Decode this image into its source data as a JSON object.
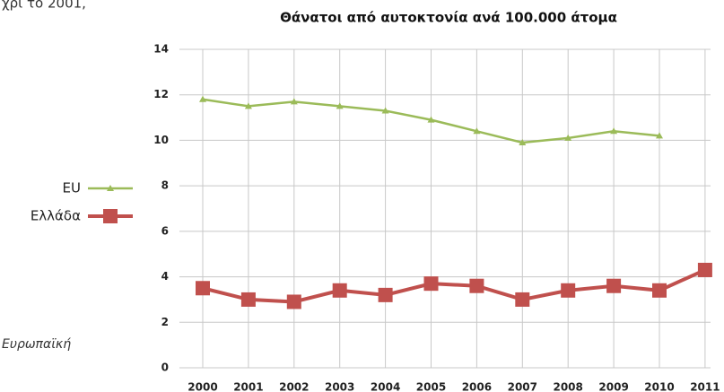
{
  "page_text": {
    "top_fragment": "χρι το 2001,",
    "side_fragment": "Ευρωπαϊκή"
  },
  "chart_data": {
    "type": "line",
    "title": "Θάνατοι από αυτοκτονία ανά 100.000 άτομα",
    "categories": [
      "2000",
      "2001",
      "2002",
      "2003",
      "2004",
      "2005",
      "2006",
      "2007",
      "2008",
      "2009",
      "2010",
      "2011"
    ],
    "series": [
      {
        "name": "EU",
        "color": "#9bbb59",
        "marker": "triangle",
        "values": [
          11.8,
          11.5,
          11.7,
          11.5,
          11.3,
          10.9,
          10.4,
          9.9,
          10.1,
          10.4,
          10.2,
          null
        ]
      },
      {
        "name": "Ελλάδα",
        "color": "#c0504d",
        "marker": "square",
        "values": [
          3.5,
          3.0,
          2.9,
          3.4,
          3.2,
          3.7,
          3.6,
          3.0,
          3.4,
          3.6,
          3.4,
          4.3
        ]
      }
    ],
    "ylim": [
      0,
      14
    ],
    "yticks": [
      0,
      2,
      4,
      6,
      8,
      10,
      12,
      14
    ],
    "grid": true,
    "legend": "left"
  }
}
